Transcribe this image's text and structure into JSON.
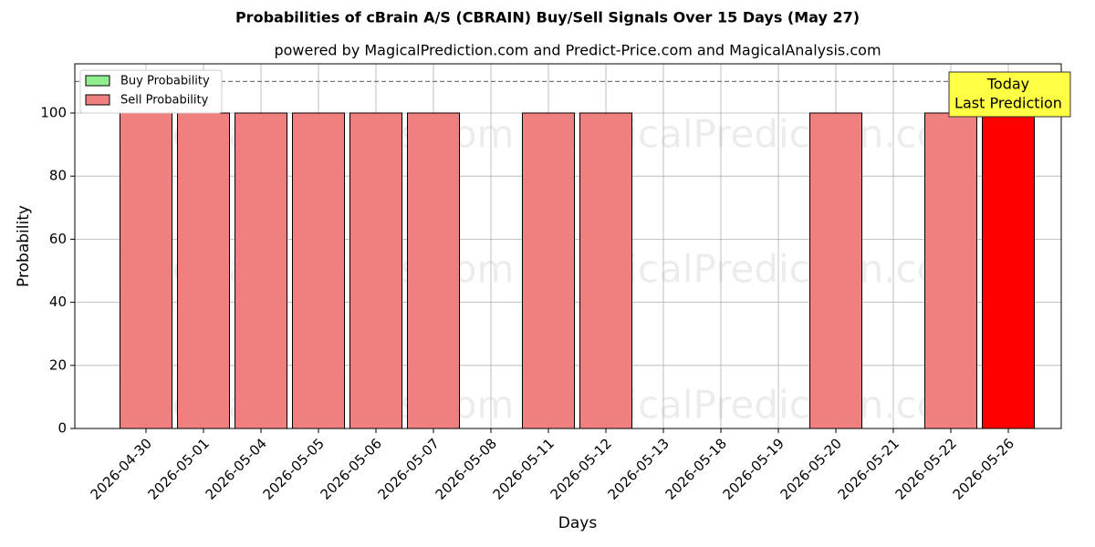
{
  "chart_data": {
    "type": "bar",
    "title": "Probabilities of cBrain A/S (CBRAIN) Buy/Sell Signals Over 15 Days (May 27)",
    "subtitle": "powered by MagicalPrediction.com and Predict-Price.com and MagicalAnalysis.com",
    "xlabel": "Days",
    "ylabel": "Probability",
    "categories": [
      "2026-04-30",
      "2026-05-01",
      "2026-05-04",
      "2026-05-05",
      "2026-05-06",
      "2026-05-07",
      "2026-05-08",
      "2026-05-11",
      "2026-05-12",
      "2026-05-13",
      "2026-05-18",
      "2026-05-19",
      "2026-05-20",
      "2026-05-21",
      "2026-05-22",
      "2026-05-26"
    ],
    "series": [
      {
        "name": "Buy Probability",
        "color": "#90ee90",
        "values": [
          0,
          0,
          0,
          0,
          0,
          0,
          0,
          0,
          0,
          0,
          0,
          0,
          0,
          0,
          0,
          0
        ]
      },
      {
        "name": "Sell Probability",
        "color": "#f08080",
        "values": [
          100,
          100,
          100,
          100,
          100,
          100,
          0,
          100,
          100,
          0,
          0,
          0,
          100,
          0,
          100,
          100
        ],
        "colors": [
          "#f08080",
          "#f08080",
          "#f08080",
          "#f08080",
          "#f08080",
          "#f08080",
          "#f08080",
          "#f08080",
          "#f08080",
          "#f08080",
          "#f08080",
          "#f08080",
          "#f08080",
          "#f08080",
          "#f08080",
          "#ff0000"
        ]
      }
    ],
    "ylim": [
      0,
      115.6
    ],
    "yticks": [
      0,
      20,
      40,
      60,
      80,
      100
    ],
    "grid": true,
    "reference_line": 110,
    "annotation": [
      "Today",
      "Last Prediction"
    ],
    "watermarks": [
      "MagicalAnalysis.com",
      "MagicalPrediction.com"
    ],
    "legend": "upper left"
  }
}
